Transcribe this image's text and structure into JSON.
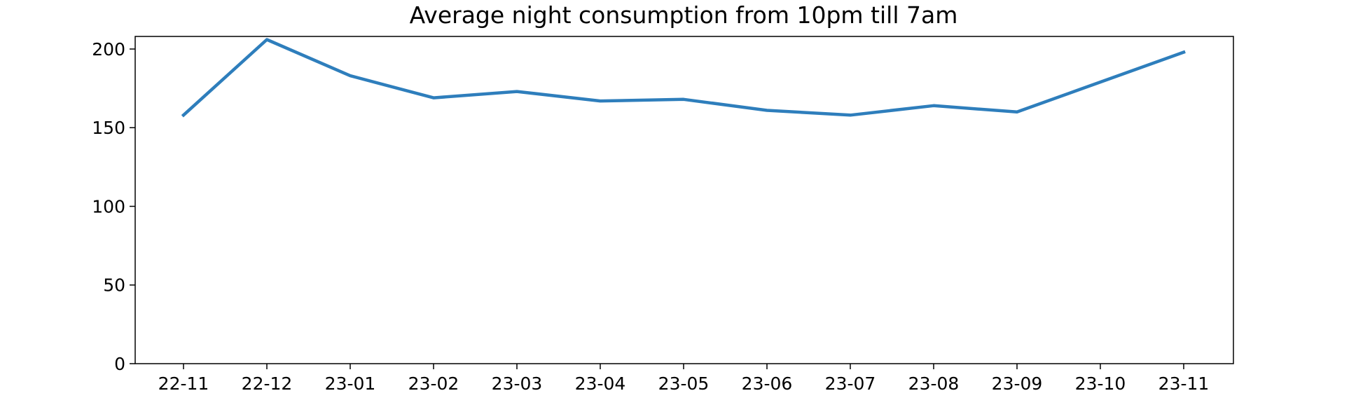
{
  "chart_data": {
    "type": "line",
    "title": "Average night consumption from 10pm till 7am",
    "xlabel": "",
    "ylabel": "",
    "categories": [
      "22-11",
      "22-12",
      "23-01",
      "23-02",
      "23-03",
      "23-04",
      "23-05",
      "23-06",
      "23-07",
      "23-08",
      "23-09",
      "23-10",
      "23-11"
    ],
    "series": [
      {
        "color": "#2e7ebc",
        "values": [
          158,
          206,
          183,
          169,
          173,
          167,
          168,
          161,
          158,
          164,
          160,
          179,
          198
        ]
      }
    ],
    "yticks": [
      0,
      50,
      100,
      150,
      200
    ],
    "ylim": [
      0,
      208
    ],
    "grid": false,
    "legend": "none"
  }
}
